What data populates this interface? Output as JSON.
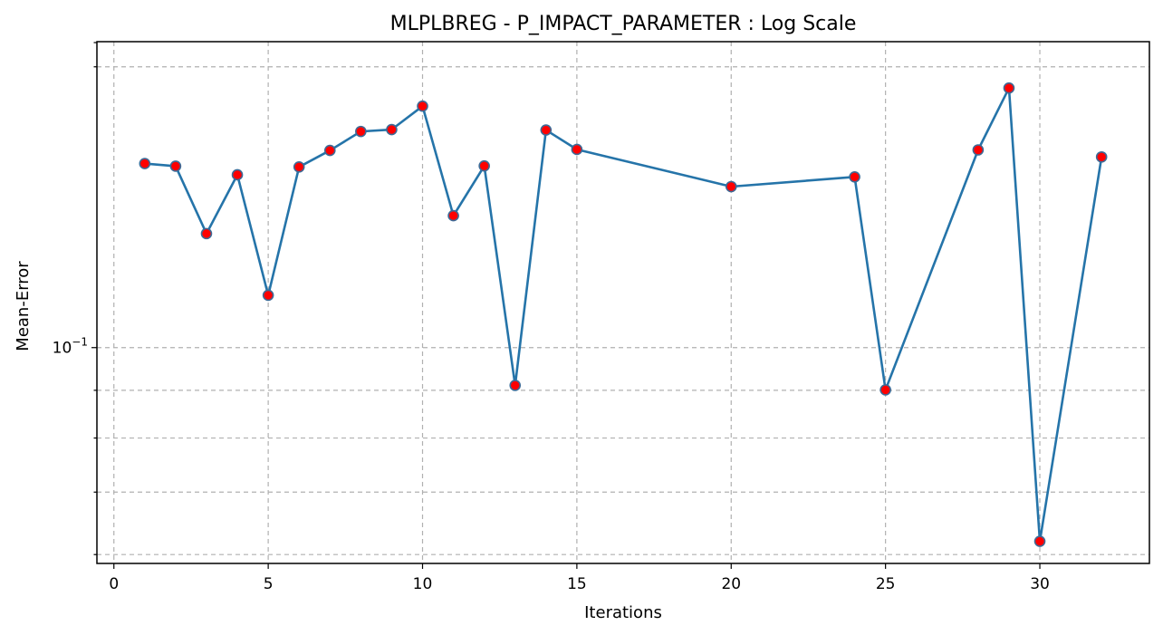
{
  "chart_data": {
    "type": "line",
    "title": "MLPLBREG - P_IMPACT_PARAMETER : Log Scale",
    "xlabel": "Iterations",
    "ylabel": "Mean-Error",
    "yscale": "log",
    "xlim": [
      -0.55,
      33.55
    ],
    "ylim": [
      0.0587,
      0.2128
    ],
    "grid": true,
    "x_ticks": [
      0,
      5,
      10,
      15,
      20,
      25,
      30
    ],
    "x_tick_labels": [
      "0",
      "5",
      "10",
      "15",
      "20",
      "25",
      "30"
    ],
    "y_major_ticks": [
      0.1
    ],
    "y_major_tick_labels": [
      "10^{-1}"
    ],
    "y_minor_ticks": [
      0.06,
      0.07,
      0.08,
      0.09,
      0.2,
      0.3
    ],
    "marker_color": "#ff0000",
    "line_color": "#2574a9",
    "series": [
      {
        "x": [
          1,
          2,
          3,
          4,
          5,
          6,
          7,
          8,
          9,
          10,
          11,
          12,
          13,
          14,
          15,
          20,
          24,
          25,
          28,
          29,
          30,
          32
        ],
        "y": [
          0.1575,
          0.1565,
          0.1325,
          0.1532,
          0.1138,
          0.1562,
          0.1627,
          0.1705,
          0.1713,
          0.1815,
          0.1385,
          0.1566,
          0.0911,
          0.1711,
          0.1631,
          0.1488,
          0.1524,
          0.0901,
          0.1629,
          0.1898,
          0.062,
          0.1601
        ]
      }
    ]
  }
}
